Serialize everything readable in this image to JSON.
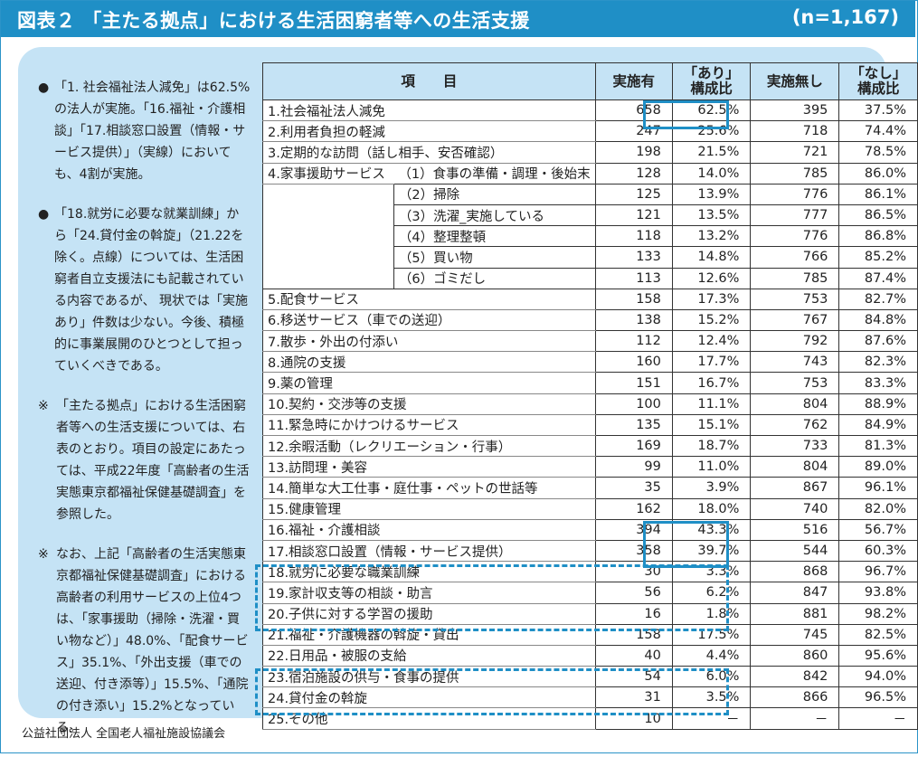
{
  "header": {
    "title": "図表２ 「主たる拠点」における生活困窮者等への生活支援",
    "n": "(n=1,167)"
  },
  "notes": [
    {
      "mark": "●",
      "text": "「1. 社会福祉法人減免」は62.5%の法人が実施。「16.福祉・介護相談」「17.相談窓口設置（情報・サービス提供）」（実線）においても、4割が実施。"
    },
    {
      "mark": "●",
      "text": "「18.就労に必要な就業訓練」から「24.貸付金の斡旋」（21.22を除く。点線）については、生活困窮者自立支援法にも記載されている内容であるが、 現状では「実施あり」件数は少ない。今後、積極的に事業展開のひとつとして担っていくべきである。"
    },
    {
      "mark": "※",
      "text": "「主たる拠点」における生活困窮者等への生活支援については、右表のとおり。項目の設定にあたっては、平成22年度「高齢者の生活実態東京都福祉保健基礎調査」を参照した。"
    },
    {
      "mark": "※",
      "text": "なお、上記「高齢者の生活実態東京都福祉保健基礎調査」における高齢者の利用サービスの上位4つは、「家事援助（掃除・洗濯・買い物など）」48.0%、「配食サービス」35.1%、「外出支援（車での送迎、付き添等）」15.5%、「通院の付き添い」15.2%となっている。"
    }
  ],
  "source": "公益社団法人 全国老人福祉施設協議会",
  "table": {
    "headers": [
      "項　　目",
      "実施有",
      "「あり」\n構成比",
      "実施無し",
      "「なし」\n構成比"
    ],
    "rows": [
      {
        "item": "1.社会福祉法人減免",
        "sub": "",
        "yes": "658",
        "yes_pct": "62.5%",
        "no": "395",
        "no_pct": "37.5%"
      },
      {
        "item": "2.利用者負担の軽減",
        "sub": "",
        "yes": "247",
        "yes_pct": "25.6%",
        "no": "718",
        "no_pct": "74.4%"
      },
      {
        "item": "3.定期的な訪問（話し相手、安否確認）",
        "sub": "",
        "yes": "198",
        "yes_pct": "21.5%",
        "no": "721",
        "no_pct": "78.5%"
      },
      {
        "item": "4.家事援助サービス",
        "sub": "（1）食事の準備・調理・後始末",
        "yes": "128",
        "yes_pct": "14.0%",
        "no": "785",
        "no_pct": "86.0%"
      },
      {
        "item": "",
        "sub": "（2）掃除",
        "yes": "125",
        "yes_pct": "13.9%",
        "no": "776",
        "no_pct": "86.1%"
      },
      {
        "item": "",
        "sub": "（3）洗濯_実施している",
        "yes": "121",
        "yes_pct": "13.5%",
        "no": "777",
        "no_pct": "86.5%"
      },
      {
        "item": "",
        "sub": "（4）整理整頓",
        "yes": "118",
        "yes_pct": "13.2%",
        "no": "776",
        "no_pct": "86.8%"
      },
      {
        "item": "",
        "sub": "（5）買い物",
        "yes": "133",
        "yes_pct": "14.8%",
        "no": "766",
        "no_pct": "85.2%"
      },
      {
        "item": "",
        "sub": "（6）ゴミだし",
        "yes": "113",
        "yes_pct": "12.6%",
        "no": "785",
        "no_pct": "87.4%"
      },
      {
        "item": "5.配食サービス",
        "sub": "",
        "yes": "158",
        "yes_pct": "17.3%",
        "no": "753",
        "no_pct": "82.7%"
      },
      {
        "item": "6.移送サービス（車での送迎）",
        "sub": "",
        "yes": "138",
        "yes_pct": "15.2%",
        "no": "767",
        "no_pct": "84.8%"
      },
      {
        "item": "7.散歩・外出の付添い",
        "sub": "",
        "yes": "112",
        "yes_pct": "12.4%",
        "no": "792",
        "no_pct": "87.6%"
      },
      {
        "item": "8.通院の支援",
        "sub": "",
        "yes": "160",
        "yes_pct": "17.7%",
        "no": "743",
        "no_pct": "82.3%"
      },
      {
        "item": "9.薬の管理",
        "sub": "",
        "yes": "151",
        "yes_pct": "16.7%",
        "no": "753",
        "no_pct": "83.3%"
      },
      {
        "item": "10.契約・交渉等の支援",
        "sub": "",
        "yes": "100",
        "yes_pct": "11.1%",
        "no": "804",
        "no_pct": "88.9%"
      },
      {
        "item": "11.緊急時にかけつけるサービス",
        "sub": "",
        "yes": "135",
        "yes_pct": "15.1%",
        "no": "762",
        "no_pct": "84.9%"
      },
      {
        "item": "12.余暇活動（レクリエーション・行事）",
        "sub": "",
        "yes": "169",
        "yes_pct": "18.7%",
        "no": "733",
        "no_pct": "81.3%"
      },
      {
        "item": "13.訪問理・美容",
        "sub": "",
        "yes": "99",
        "yes_pct": "11.0%",
        "no": "804",
        "no_pct": "89.0%"
      },
      {
        "item": "14.簡単な大工仕事・庭仕事・ペットの世話等",
        "sub": "",
        "yes": "35",
        "yes_pct": "3.9%",
        "no": "867",
        "no_pct": "96.1%"
      },
      {
        "item": "15.健康管理",
        "sub": "",
        "yes": "162",
        "yes_pct": "18.0%",
        "no": "740",
        "no_pct": "82.0%"
      },
      {
        "item": "16.福祉・介護相談",
        "sub": "",
        "yes": "394",
        "yes_pct": "43.3%",
        "no": "516",
        "no_pct": "56.7%"
      },
      {
        "item": "17.相談窓口設置（情報・サービス提供）",
        "sub": "",
        "yes": "358",
        "yes_pct": "39.7%",
        "no": "544",
        "no_pct": "60.3%"
      },
      {
        "item": "18.就労に必要な職業訓練",
        "sub": "",
        "yes": "30",
        "yes_pct": "3.3%",
        "no": "868",
        "no_pct": "96.7%"
      },
      {
        "item": "19.家計収支等の相談・助言",
        "sub": "",
        "yes": "56",
        "yes_pct": "6.2%",
        "no": "847",
        "no_pct": "93.8%"
      },
      {
        "item": "20.子供に対する学習の援助",
        "sub": "",
        "yes": "16",
        "yes_pct": "1.8%",
        "no": "881",
        "no_pct": "98.2%"
      },
      {
        "item": "21.福祉・介護機器の斡旋・貸出",
        "sub": "",
        "yes": "158",
        "yes_pct": "17.5%",
        "no": "745",
        "no_pct": "82.5%"
      },
      {
        "item": "22.日用品・被服の支給",
        "sub": "",
        "yes": "40",
        "yes_pct": "4.4%",
        "no": "860",
        "no_pct": "95.6%"
      },
      {
        "item": "23.宿泊施設の供与・食事の提供",
        "sub": "",
        "yes": "54",
        "yes_pct": "6.0%",
        "no": "842",
        "no_pct": "94.0%"
      },
      {
        "item": "24.貸付金の斡旋",
        "sub": "",
        "yes": "31",
        "yes_pct": "3.5%",
        "no": "866",
        "no_pct": "96.5%"
      },
      {
        "item": "25.その他",
        "sub": "",
        "yes": "10",
        "yes_pct": "－",
        "no": "－",
        "no_pct": "－"
      }
    ]
  }
}
